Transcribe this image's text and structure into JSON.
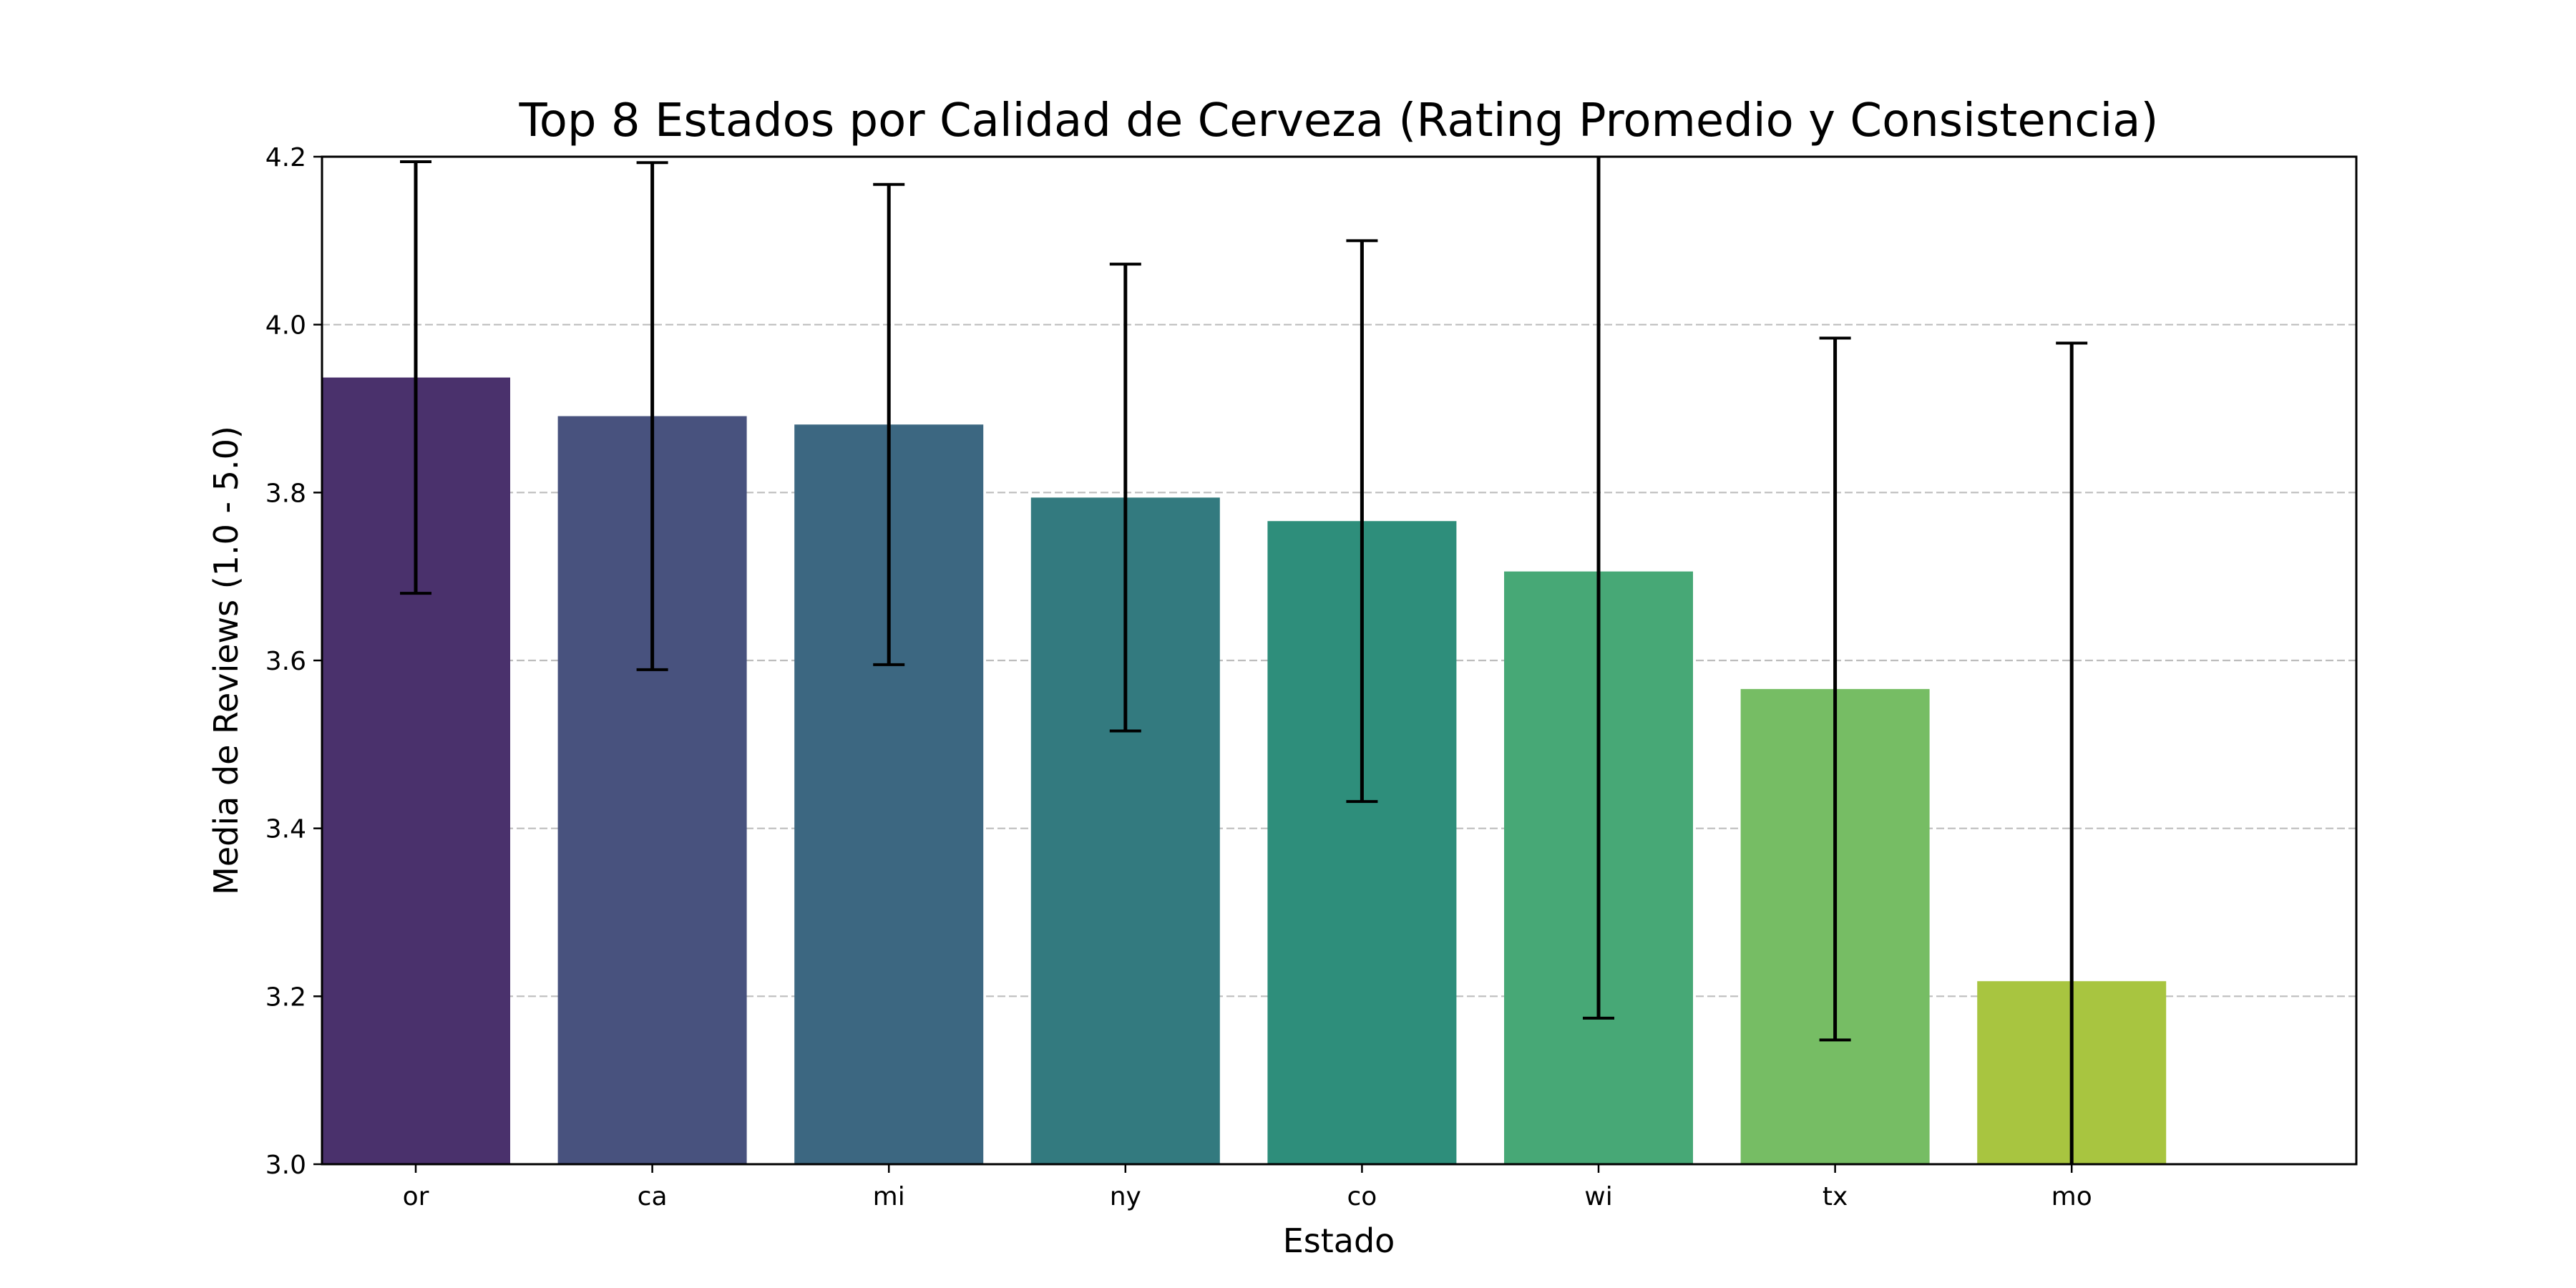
{
  "chart_data": {
    "type": "bar",
    "title": "Top 8 Estados por Calidad de Cerveza (Rating Promedio y Consistencia)",
    "xlabel": "Estado",
    "ylabel": "Media de Reviews (1.0 - 5.0)",
    "categories": [
      "or",
      "ca",
      "mi",
      "ny",
      "co",
      "wi",
      "tx",
      "mo"
    ],
    "values": [
      3.937,
      3.891,
      3.881,
      3.794,
      3.766,
      3.706,
      3.566,
      3.218
    ],
    "error": [
      0.257,
      0.302,
      0.286,
      0.278,
      0.334,
      0.532,
      0.418,
      0.76
    ],
    "colors": [
      "#4a316c",
      "#48527e",
      "#3c6781",
      "#337a7f",
      "#2e8e7b",
      "#47a876",
      "#76bd64",
      "#a8c540"
    ],
    "ylim": [
      3.0,
      4.2
    ],
    "yticks": [
      "3.0",
      "3.2",
      "3.4",
      "3.6",
      "3.8",
      "4.0",
      "4.2"
    ],
    "grid": "y-dashed",
    "legend": "none"
  }
}
